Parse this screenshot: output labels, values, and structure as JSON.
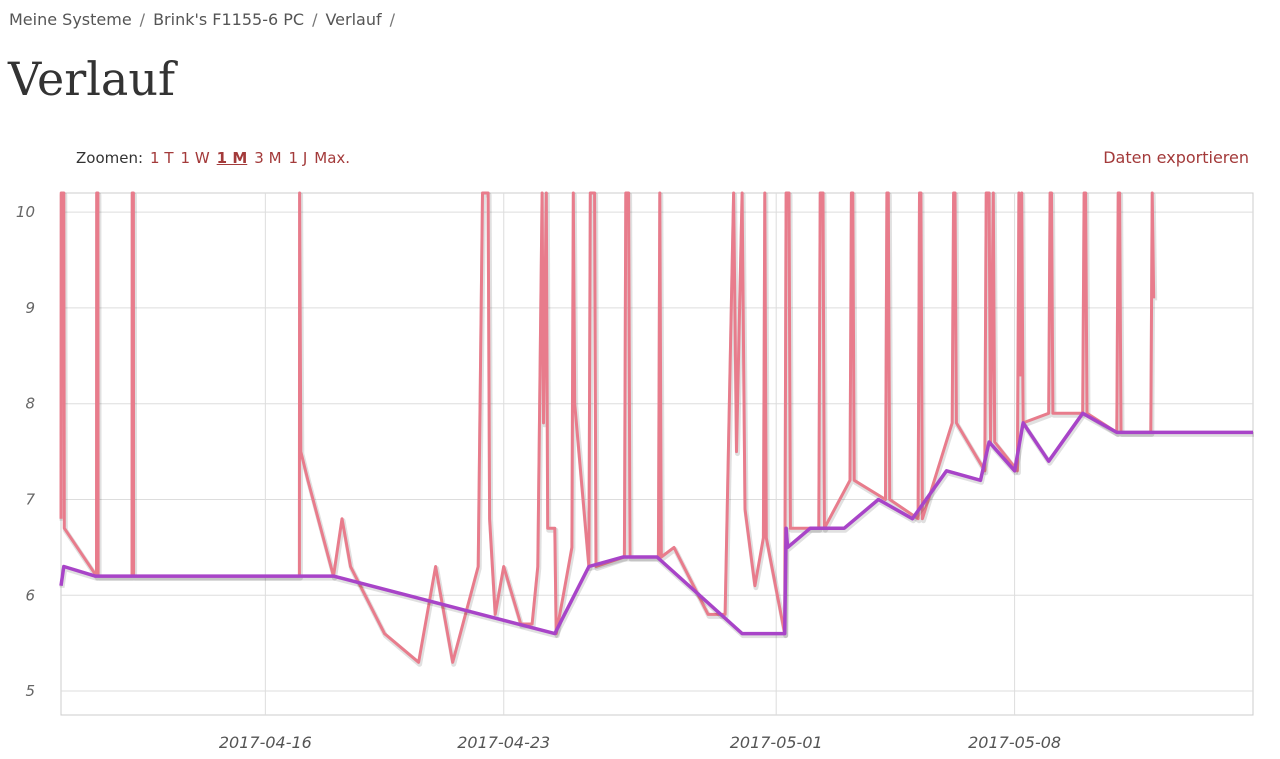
{
  "breadcrumb": {
    "items": [
      "Meine Systeme",
      "Brink's F1155-6 PC",
      "Verlauf"
    ],
    "separator": "/"
  },
  "page": {
    "title": "Verlauf"
  },
  "zoom": {
    "label": "Zoomen:",
    "options": [
      "1 T",
      "1 W",
      "1 M",
      "3 M",
      "1 J",
      "Max."
    ],
    "active": "1 M"
  },
  "export_label": "Daten exportieren",
  "colors": {
    "link": "#a33a3a",
    "series_pink": "#e87c8c",
    "series_purple": "#a844c8"
  },
  "chart_data": {
    "type": "line",
    "ylim": [
      4.75,
      10.2
    ],
    "xlim": [
      "2017-04-10T00:00",
      "2017-05-15T00:00"
    ],
    "y_ticks": [
      "5",
      "6",
      "7",
      "8",
      "9",
      "10"
    ],
    "x_ticks": [
      "2017-04-16",
      "2017-04-23",
      "2017-05-01",
      "2017-05-08"
    ],
    "grid": true,
    "series": [
      {
        "color": "#e87c8c",
        "points": [
          [
            "2017-04-10T00:00",
            6.8
          ],
          [
            "2017-04-10T00:10",
            10.2
          ],
          [
            "2017-04-10T02:00",
            10.2
          ],
          [
            "2017-04-10T02:20",
            6.7
          ],
          [
            "2017-04-11T01:00",
            6.2
          ],
          [
            "2017-04-11T01:10",
            10.2
          ],
          [
            "2017-04-11T02:00",
            10.2
          ],
          [
            "2017-04-11T02:10",
            6.2
          ],
          [
            "2017-04-12T02:00",
            6.2
          ],
          [
            "2017-04-12T02:10",
            10.2
          ],
          [
            "2017-04-12T03:00",
            10.2
          ],
          [
            "2017-04-12T03:10",
            6.2
          ],
          [
            "2017-04-17T00:00",
            6.2
          ],
          [
            "2017-04-17T00:10",
            10.2
          ],
          [
            "2017-04-17T01:00",
            7.5
          ],
          [
            "2017-04-17T06:00",
            7.2
          ],
          [
            "2017-04-18T00:00",
            6.2
          ],
          [
            "2017-04-18T06:00",
            6.8
          ],
          [
            "2017-04-18T12:00",
            6.3
          ],
          [
            "2017-04-19T12:00",
            5.6
          ],
          [
            "2017-04-20T12:00",
            5.3
          ],
          [
            "2017-04-21T00:00",
            6.3
          ],
          [
            "2017-04-21T12:00",
            5.3
          ],
          [
            "2017-04-22T06:00",
            6.3
          ],
          [
            "2017-04-22T09:00",
            10.2
          ],
          [
            "2017-04-22T13:00",
            10.2
          ],
          [
            "2017-04-22T14:00",
            6.8
          ],
          [
            "2017-04-22T18:00",
            5.8
          ],
          [
            "2017-04-23T00:00",
            6.3
          ],
          [
            "2017-04-23T12:00",
            5.7
          ],
          [
            "2017-04-23T20:00",
            5.7
          ],
          [
            "2017-04-24T00:00",
            6.3
          ],
          [
            "2017-04-24T03:00",
            10.2
          ],
          [
            "2017-04-24T04:00",
            7.8
          ],
          [
            "2017-04-24T06:00",
            10.2
          ],
          [
            "2017-04-24T07:00",
            6.7
          ],
          [
            "2017-04-24T12:00",
            6.7
          ],
          [
            "2017-04-24T13:00",
            5.6
          ],
          [
            "2017-04-24T18:00",
            6.0
          ],
          [
            "2017-04-25T00:00",
            6.5
          ],
          [
            "2017-04-25T01:00",
            10.2
          ],
          [
            "2017-04-25T02:00",
            8.0
          ],
          [
            "2017-04-25T12:00",
            6.3
          ],
          [
            "2017-04-25T13:00",
            10.2
          ],
          [
            "2017-04-25T16:00",
            10.2
          ],
          [
            "2017-04-25T17:00",
            6.3
          ],
          [
            "2017-04-26T13:00",
            6.4
          ],
          [
            "2017-04-26T14:00",
            10.2
          ],
          [
            "2017-04-26T16:00",
            10.2
          ],
          [
            "2017-04-26T17:00",
            6.4
          ],
          [
            "2017-04-27T13:00",
            6.4
          ],
          [
            "2017-04-27T14:00",
            10.2
          ],
          [
            "2017-04-27T15:00",
            6.4
          ],
          [
            "2017-04-28T00:00",
            6.5
          ],
          [
            "2017-04-29T00:00",
            5.8
          ],
          [
            "2017-04-29T12:00",
            5.8
          ],
          [
            "2017-04-29T18:00",
            10.2
          ],
          [
            "2017-04-29T20:00",
            7.5
          ],
          [
            "2017-04-30T00:00",
            10.2
          ],
          [
            "2017-04-30T02:00",
            6.9
          ],
          [
            "2017-04-30T09:00",
            6.1
          ],
          [
            "2017-04-30T15:00",
            6.6
          ],
          [
            "2017-04-30T16:00",
            10.2
          ],
          [
            "2017-04-30T17:00",
            6.6
          ],
          [
            "2017-05-01T06:00",
            5.6
          ],
          [
            "2017-05-01T07:00",
            10.2
          ],
          [
            "2017-05-01T09:00",
            10.2
          ],
          [
            "2017-05-01T10:00",
            6.7
          ],
          [
            "2017-05-02T06:00",
            6.7
          ],
          [
            "2017-05-02T07:00",
            10.2
          ],
          [
            "2017-05-02T09:00",
            10.2
          ],
          [
            "2017-05-02T10:00",
            6.7
          ],
          [
            "2017-05-03T04:00",
            7.2
          ],
          [
            "2017-05-03T05:00",
            10.2
          ],
          [
            "2017-05-03T06:00",
            10.2
          ],
          [
            "2017-05-03T07:00",
            7.2
          ],
          [
            "2017-05-04T05:00",
            7.0
          ],
          [
            "2017-05-04T06:00",
            10.2
          ],
          [
            "2017-05-04T07:00",
            10.2
          ],
          [
            "2017-05-04T08:00",
            7.0
          ],
          [
            "2017-05-05T04:00",
            6.8
          ],
          [
            "2017-05-05T05:00",
            10.2
          ],
          [
            "2017-05-05T06:00",
            10.2
          ],
          [
            "2017-05-05T07:00",
            6.8
          ],
          [
            "2017-05-06T04:00",
            7.8
          ],
          [
            "2017-05-06T05:00",
            10.2
          ],
          [
            "2017-05-06T06:00",
            10.2
          ],
          [
            "2017-05-06T07:00",
            7.8
          ],
          [
            "2017-05-07T03:00",
            7.3
          ],
          [
            "2017-05-07T04:00",
            10.2
          ],
          [
            "2017-05-07T06:00",
            10.2
          ],
          [
            "2017-05-07T07:00",
            7.6
          ],
          [
            "2017-05-07T09:00",
            10.2
          ],
          [
            "2017-05-07T10:00",
            7.6
          ],
          [
            "2017-05-08T02:00",
            7.3
          ],
          [
            "2017-05-08T03:00",
            10.2
          ],
          [
            "2017-05-08T04:00",
            8.3
          ],
          [
            "2017-05-08T05:00",
            10.2
          ],
          [
            "2017-05-08T06:00",
            7.8
          ],
          [
            "2017-05-09T00:00",
            7.9
          ],
          [
            "2017-05-09T01:00",
            10.2
          ],
          [
            "2017-05-09T02:00",
            10.2
          ],
          [
            "2017-05-09T03:00",
            7.9
          ],
          [
            "2017-05-10T00:00",
            7.9
          ],
          [
            "2017-05-10T01:00",
            10.2
          ],
          [
            "2017-05-10T02:00",
            10.2
          ],
          [
            "2017-05-10T03:00",
            7.9
          ],
          [
            "2017-05-11T00:00",
            7.7
          ],
          [
            "2017-05-11T01:00",
            10.2
          ],
          [
            "2017-05-11T02:00",
            10.2
          ],
          [
            "2017-05-11T03:00",
            7.7
          ],
          [
            "2017-05-12T00:00",
            7.7
          ],
          [
            "2017-05-12T01:00",
            10.2
          ],
          [
            "2017-05-12T02:00",
            9.1
          ]
        ]
      },
      {
        "color": "#a844c8",
        "points": [
          [
            "2017-04-10T00:00",
            6.1
          ],
          [
            "2017-04-10T02:00",
            6.3
          ],
          [
            "2017-04-11T00:00",
            6.2
          ],
          [
            "2017-04-18T00:00",
            6.2
          ],
          [
            "2017-04-24T12:00",
            5.6
          ],
          [
            "2017-04-25T12:00",
            6.3
          ],
          [
            "2017-04-26T12:00",
            6.4
          ],
          [
            "2017-04-27T12:00",
            6.4
          ],
          [
            "2017-04-30T00:00",
            5.6
          ],
          [
            "2017-05-01T06:00",
            5.6
          ],
          [
            "2017-05-01T07:00",
            6.7
          ],
          [
            "2017-05-01T08:00",
            6.5
          ],
          [
            "2017-05-02T00:00",
            6.7
          ],
          [
            "2017-05-03T00:00",
            6.7
          ],
          [
            "2017-05-04T00:00",
            7.0
          ],
          [
            "2017-05-05T00:00",
            6.8
          ],
          [
            "2017-05-06T00:00",
            7.3
          ],
          [
            "2017-05-07T00:00",
            7.2
          ],
          [
            "2017-05-07T06:00",
            7.6
          ],
          [
            "2017-05-08T00:00",
            7.3
          ],
          [
            "2017-05-08T06:00",
            7.8
          ],
          [
            "2017-05-09T00:00",
            7.4
          ],
          [
            "2017-05-10T00:00",
            7.9
          ],
          [
            "2017-05-11T00:00",
            7.7
          ],
          [
            "2017-05-15T00:00",
            7.7
          ]
        ]
      }
    ]
  }
}
